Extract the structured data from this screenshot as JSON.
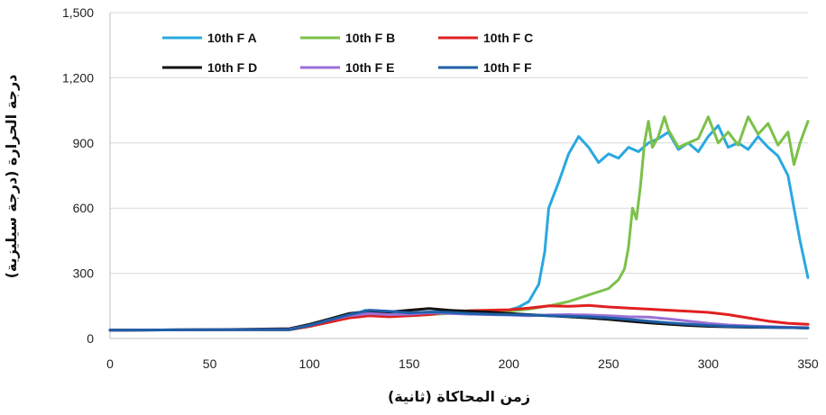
{
  "chart_data": {
    "type": "line",
    "title": "",
    "xlabel": "زمن المحاكاة (ثانية)",
    "ylabel": "درجة الحرارة (درجة سيليزية)",
    "xlim": [
      0,
      350
    ],
    "ylim": [
      0,
      1500
    ],
    "x_ticks": [
      0,
      50,
      100,
      150,
      200,
      250,
      300,
      350
    ],
    "y_ticks": [
      0,
      300,
      600,
      900,
      1200,
      1500
    ],
    "y_tick_labels": [
      "0",
      "300",
      "600",
      "900",
      "1,200",
      "1,500"
    ],
    "grid": "horizontal",
    "legend_position": "top",
    "series": [
      {
        "name": "10th F A",
        "color": "#29a8e0",
        "points": [
          [
            0,
            38
          ],
          [
            50,
            40
          ],
          [
            90,
            40
          ],
          [
            100,
            60
          ],
          [
            110,
            85
          ],
          [
            120,
            100
          ],
          [
            128,
            130
          ],
          [
            140,
            115
          ],
          [
            150,
            108
          ],
          [
            160,
            120
          ],
          [
            170,
            125
          ],
          [
            180,
            122
          ],
          [
            190,
            125
          ],
          [
            200,
            130
          ],
          [
            205,
            145
          ],
          [
            210,
            170
          ],
          [
            215,
            250
          ],
          [
            218,
            400
          ],
          [
            220,
            600
          ],
          [
            225,
            720
          ],
          [
            230,
            850
          ],
          [
            235,
            930
          ],
          [
            240,
            880
          ],
          [
            245,
            810
          ],
          [
            250,
            850
          ],
          [
            255,
            830
          ],
          [
            260,
            880
          ],
          [
            265,
            860
          ],
          [
            270,
            900
          ],
          [
            275,
            920
          ],
          [
            280,
            950
          ],
          [
            285,
            870
          ],
          [
            290,
            900
          ],
          [
            295,
            860
          ],
          [
            300,
            930
          ],
          [
            305,
            980
          ],
          [
            310,
            880
          ],
          [
            315,
            900
          ],
          [
            320,
            870
          ],
          [
            325,
            930
          ],
          [
            330,
            880
          ],
          [
            335,
            840
          ],
          [
            340,
            750
          ],
          [
            343,
            600
          ],
          [
            346,
            450
          ],
          [
            350,
            280
          ]
        ]
      },
      {
        "name": "10th F B",
        "color": "#7cc14a",
        "points": [
          [
            0,
            38
          ],
          [
            50,
            40
          ],
          [
            90,
            40
          ],
          [
            100,
            55
          ],
          [
            110,
            80
          ],
          [
            120,
            100
          ],
          [
            130,
            110
          ],
          [
            140,
            105
          ],
          [
            150,
            105
          ],
          [
            160,
            110
          ],
          [
            170,
            115
          ],
          [
            180,
            115
          ],
          [
            190,
            120
          ],
          [
            200,
            125
          ],
          [
            210,
            135
          ],
          [
            220,
            150
          ],
          [
            230,
            170
          ],
          [
            240,
            200
          ],
          [
            250,
            230
          ],
          [
            255,
            270
          ],
          [
            258,
            320
          ],
          [
            260,
            420
          ],
          [
            262,
            600
          ],
          [
            264,
            550
          ],
          [
            266,
            700
          ],
          [
            268,
            900
          ],
          [
            270,
            1000
          ],
          [
            272,
            880
          ],
          [
            275,
            930
          ],
          [
            278,
            1020
          ],
          [
            280,
            960
          ],
          [
            285,
            880
          ],
          [
            290,
            900
          ],
          [
            295,
            920
          ],
          [
            300,
            1020
          ],
          [
            305,
            900
          ],
          [
            310,
            950
          ],
          [
            315,
            890
          ],
          [
            320,
            1020
          ],
          [
            325,
            940
          ],
          [
            330,
            990
          ],
          [
            335,
            890
          ],
          [
            340,
            950
          ],
          [
            343,
            800
          ],
          [
            346,
            900
          ],
          [
            350,
            1000
          ]
        ]
      },
      {
        "name": "10th F C",
        "color": "#e02020",
        "points": [
          [
            0,
            38
          ],
          [
            50,
            40
          ],
          [
            90,
            40
          ],
          [
            100,
            55
          ],
          [
            110,
            75
          ],
          [
            120,
            95
          ],
          [
            130,
            105
          ],
          [
            140,
            100
          ],
          [
            150,
            105
          ],
          [
            160,
            110
          ],
          [
            170,
            120
          ],
          [
            180,
            128
          ],
          [
            190,
            130
          ],
          [
            200,
            132
          ],
          [
            210,
            140
          ],
          [
            220,
            150
          ],
          [
            230,
            148
          ],
          [
            240,
            152
          ],
          [
            250,
            145
          ],
          [
            260,
            140
          ],
          [
            270,
            135
          ],
          [
            280,
            130
          ],
          [
            290,
            125
          ],
          [
            300,
            120
          ],
          [
            310,
            110
          ],
          [
            320,
            95
          ],
          [
            330,
            80
          ],
          [
            340,
            70
          ],
          [
            350,
            65
          ]
        ]
      },
      {
        "name": "10th F D",
        "color": "#111111",
        "points": [
          [
            0,
            38
          ],
          [
            50,
            40
          ],
          [
            90,
            45
          ],
          [
            100,
            65
          ],
          [
            110,
            90
          ],
          [
            120,
            115
          ],
          [
            130,
            125
          ],
          [
            140,
            122
          ],
          [
            150,
            130
          ],
          [
            160,
            138
          ],
          [
            170,
            130
          ],
          [
            180,
            125
          ],
          [
            190,
            122
          ],
          [
            200,
            115
          ],
          [
            210,
            110
          ],
          [
            220,
            105
          ],
          [
            230,
            100
          ],
          [
            240,
            95
          ],
          [
            250,
            88
          ],
          [
            260,
            80
          ],
          [
            270,
            72
          ],
          [
            280,
            66
          ],
          [
            290,
            60
          ],
          [
            300,
            56
          ],
          [
            320,
            52
          ],
          [
            340,
            50
          ],
          [
            350,
            48
          ]
        ]
      },
      {
        "name": "10th F E",
        "color": "#9b6fd6",
        "points": [
          [
            0,
            38
          ],
          [
            50,
            40
          ],
          [
            90,
            42
          ],
          [
            100,
            60
          ],
          [
            110,
            85
          ],
          [
            120,
            105
          ],
          [
            130,
            115
          ],
          [
            140,
            110
          ],
          [
            150,
            112
          ],
          [
            160,
            118
          ],
          [
            170,
            115
          ],
          [
            180,
            112
          ],
          [
            190,
            110
          ],
          [
            200,
            108
          ],
          [
            210,
            105
          ],
          [
            220,
            108
          ],
          [
            230,
            110
          ],
          [
            240,
            108
          ],
          [
            250,
            105
          ],
          [
            260,
            100
          ],
          [
            270,
            98
          ],
          [
            280,
            90
          ],
          [
            290,
            80
          ],
          [
            300,
            70
          ],
          [
            310,
            62
          ],
          [
            320,
            58
          ],
          [
            330,
            55
          ],
          [
            340,
            52
          ],
          [
            350,
            50
          ]
        ]
      },
      {
        "name": "10th F F",
        "color": "#1f5fa8",
        "points": [
          [
            0,
            38
          ],
          [
            50,
            40
          ],
          [
            90,
            40
          ],
          [
            100,
            60
          ],
          [
            110,
            85
          ],
          [
            120,
            110
          ],
          [
            130,
            130
          ],
          [
            140,
            125
          ],
          [
            150,
            118
          ],
          [
            160,
            122
          ],
          [
            170,
            120
          ],
          [
            180,
            115
          ],
          [
            190,
            112
          ],
          [
            200,
            110
          ],
          [
            210,
            108
          ],
          [
            220,
            105
          ],
          [
            230,
            102
          ],
          [
            240,
            100
          ],
          [
            250,
            95
          ],
          [
            260,
            88
          ],
          [
            270,
            80
          ],
          [
            280,
            72
          ],
          [
            290,
            66
          ],
          [
            300,
            60
          ],
          [
            310,
            56
          ],
          [
            320,
            54
          ],
          [
            330,
            52
          ],
          [
            340,
            50
          ],
          [
            350,
            48
          ]
        ]
      }
    ]
  }
}
